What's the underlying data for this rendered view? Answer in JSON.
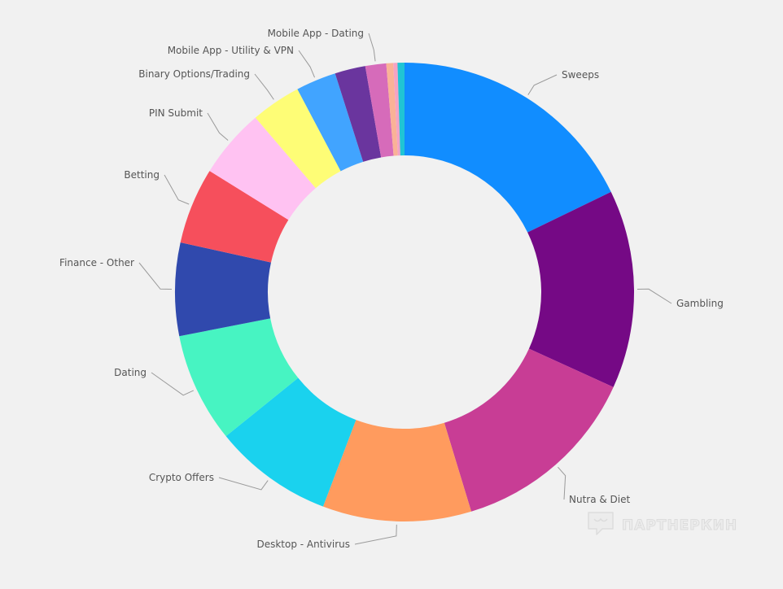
{
  "chart_data": {
    "type": "pie",
    "variant": "donut",
    "slices": [
      {
        "label": "Sweeps",
        "value": 18.2,
        "color": "#118dff"
      },
      {
        "label": "Gambling",
        "value": 14.3,
        "color": "#750985"
      },
      {
        "label": "Nutra & Diet",
        "value": 13.8,
        "color": "#c83d95"
      },
      {
        "label": "Desktop - Antivirus",
        "value": 10.7,
        "color": "#ff9b5e"
      },
      {
        "label": "Crypto Offers",
        "value": 8.6,
        "color": "#1ad2ee"
      },
      {
        "label": "Dating",
        "value": 7.9,
        "color": "#47f4c2"
      },
      {
        "label": "Finance - Other",
        "value": 6.7,
        "color": "#3049ad"
      },
      {
        "label": "Betting",
        "value": 5.5,
        "color": "#f64f5c"
      },
      {
        "label": "PIN Submit",
        "value": 5.0,
        "color": "#ffc2f2"
      },
      {
        "label": "Binary Options/Trading",
        "value": 3.6,
        "color": "#fefd76"
      },
      {
        "label": "Mobile App - Utility & VPN",
        "value": 2.9,
        "color": "#41a4ff"
      },
      {
        "label": "",
        "value": 2.2,
        "color": "#6a359e"
      },
      {
        "label": "Mobile App - Dating",
        "value": 1.5,
        "color": "#d66bba"
      },
      {
        "label": "",
        "value": 0.5,
        "color": "#fab297"
      },
      {
        "label": "",
        "value": 0.3,
        "color": "#f4a3c4"
      },
      {
        "label": "",
        "value": 0.5,
        "color": "#20c5d4"
      }
    ],
    "legend": "none"
  },
  "watermark": {
    "text": "ПАРТНЕРКИН"
  }
}
